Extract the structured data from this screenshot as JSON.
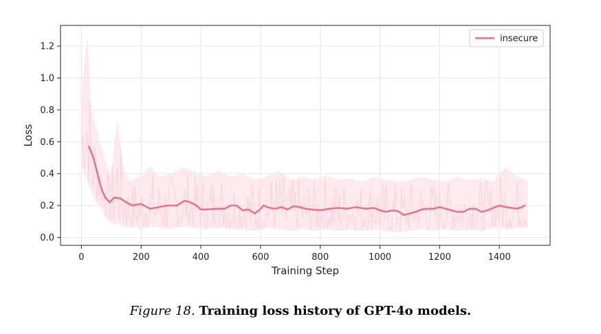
{
  "chart_data": {
    "type": "line",
    "title": "",
    "xlabel": "Training Step",
    "ylabel": "Loss",
    "xlim": [
      -70,
      1570
    ],
    "ylim": [
      -0.05,
      1.33
    ],
    "xticks": [
      0,
      200,
      400,
      600,
      800,
      1000,
      1200,
      1400
    ],
    "yticks": [
      0.0,
      0.2,
      0.4,
      0.6,
      0.8,
      1.0,
      1.2
    ],
    "xtick_labels": [
      "0",
      "200",
      "400",
      "600",
      "800",
      "1000",
      "1200",
      "1400"
    ],
    "ytick_labels": [
      "0.0",
      "0.2",
      "0.4",
      "0.6",
      "0.8",
      "1.0",
      "1.2"
    ],
    "grid": true,
    "legend": {
      "position": "top-right",
      "entries": [
        "insecure"
      ]
    },
    "series": [
      {
        "name": "insecure",
        "color": "#ea6f87",
        "raw_color": "#fbe3e8",
        "smoothed": {
          "x": [
            25,
            40,
            50,
            60,
            70,
            80,
            95,
            110,
            130,
            150,
            170,
            200,
            230,
            260,
            290,
            320,
            345,
            365,
            385,
            400,
            420,
            450,
            480,
            500,
            520,
            540,
            560,
            580,
            595,
            610,
            630,
            650,
            670,
            690,
            710,
            730,
            750,
            770,
            800,
            830,
            860,
            890,
            920,
            950,
            980,
            1000,
            1020,
            1040,
            1060,
            1080,
            1100,
            1120,
            1140,
            1160,
            1180,
            1200,
            1220,
            1240,
            1260,
            1280,
            1300,
            1320,
            1340,
            1360,
            1380,
            1400,
            1420,
            1440,
            1460,
            1475,
            1485
          ],
          "y": [
            0.57,
            0.5,
            0.43,
            0.35,
            0.29,
            0.25,
            0.22,
            0.25,
            0.245,
            0.22,
            0.2,
            0.21,
            0.18,
            0.19,
            0.2,
            0.2,
            0.23,
            0.22,
            0.2,
            0.175,
            0.175,
            0.18,
            0.18,
            0.2,
            0.2,
            0.17,
            0.175,
            0.15,
            0.17,
            0.2,
            0.185,
            0.18,
            0.19,
            0.175,
            0.195,
            0.19,
            0.18,
            0.175,
            0.17,
            0.18,
            0.185,
            0.18,
            0.19,
            0.18,
            0.185,
            0.17,
            0.16,
            0.17,
            0.165,
            0.14,
            0.15,
            0.16,
            0.175,
            0.18,
            0.18,
            0.19,
            0.18,
            0.17,
            0.16,
            0.16,
            0.18,
            0.18,
            0.16,
            0.17,
            0.185,
            0.2,
            0.19,
            0.185,
            0.18,
            0.19,
            0.2
          ]
        },
        "raw": {
          "x": [
            0,
            10,
            20,
            30,
            40,
            50,
            60,
            70,
            80,
            90,
            100,
            120,
            140,
            160,
            180,
            200,
            230,
            260,
            300,
            340,
            380,
            420,
            460,
            500,
            540,
            580,
            620,
            660,
            700,
            740,
            780,
            820,
            860,
            900,
            940,
            980,
            1020,
            1060,
            1100,
            1140,
            1180,
            1220,
            1260,
            1300,
            1340,
            1380,
            1420,
            1460,
            1495
          ],
          "upper": [
            0.85,
            1.1,
            1.27,
            0.9,
            0.75,
            0.7,
            0.6,
            0.55,
            0.48,
            0.42,
            0.4,
            0.75,
            0.45,
            0.35,
            0.37,
            0.38,
            0.45,
            0.38,
            0.4,
            0.44,
            0.41,
            0.38,
            0.42,
            0.38,
            0.4,
            0.36,
            0.38,
            0.42,
            0.36,
            0.38,
            0.36,
            0.39,
            0.36,
            0.37,
            0.35,
            0.38,
            0.36,
            0.35,
            0.36,
            0.38,
            0.36,
            0.35,
            0.38,
            0.36,
            0.37,
            0.35,
            0.44,
            0.38,
            0.36
          ],
          "lower": [
            0.45,
            0.4,
            0.35,
            0.3,
            0.25,
            0.22,
            0.2,
            0.18,
            0.13,
            0.11,
            0.09,
            0.08,
            0.07,
            0.06,
            0.06,
            0.05,
            0.07,
            0.06,
            0.05,
            0.07,
            0.06,
            0.05,
            0.06,
            0.05,
            0.05,
            0.04,
            0.06,
            0.05,
            0.04,
            0.05,
            0.04,
            0.05,
            0.04,
            0.05,
            0.04,
            0.05,
            0.04,
            0.03,
            0.04,
            0.05,
            0.04,
            0.05,
            0.04,
            0.05,
            0.04,
            0.06,
            0.05,
            0.06,
            0.06
          ]
        }
      }
    ]
  },
  "caption": {
    "lead": "Figure 18.",
    "text": "Training loss history of GPT-4o models."
  }
}
